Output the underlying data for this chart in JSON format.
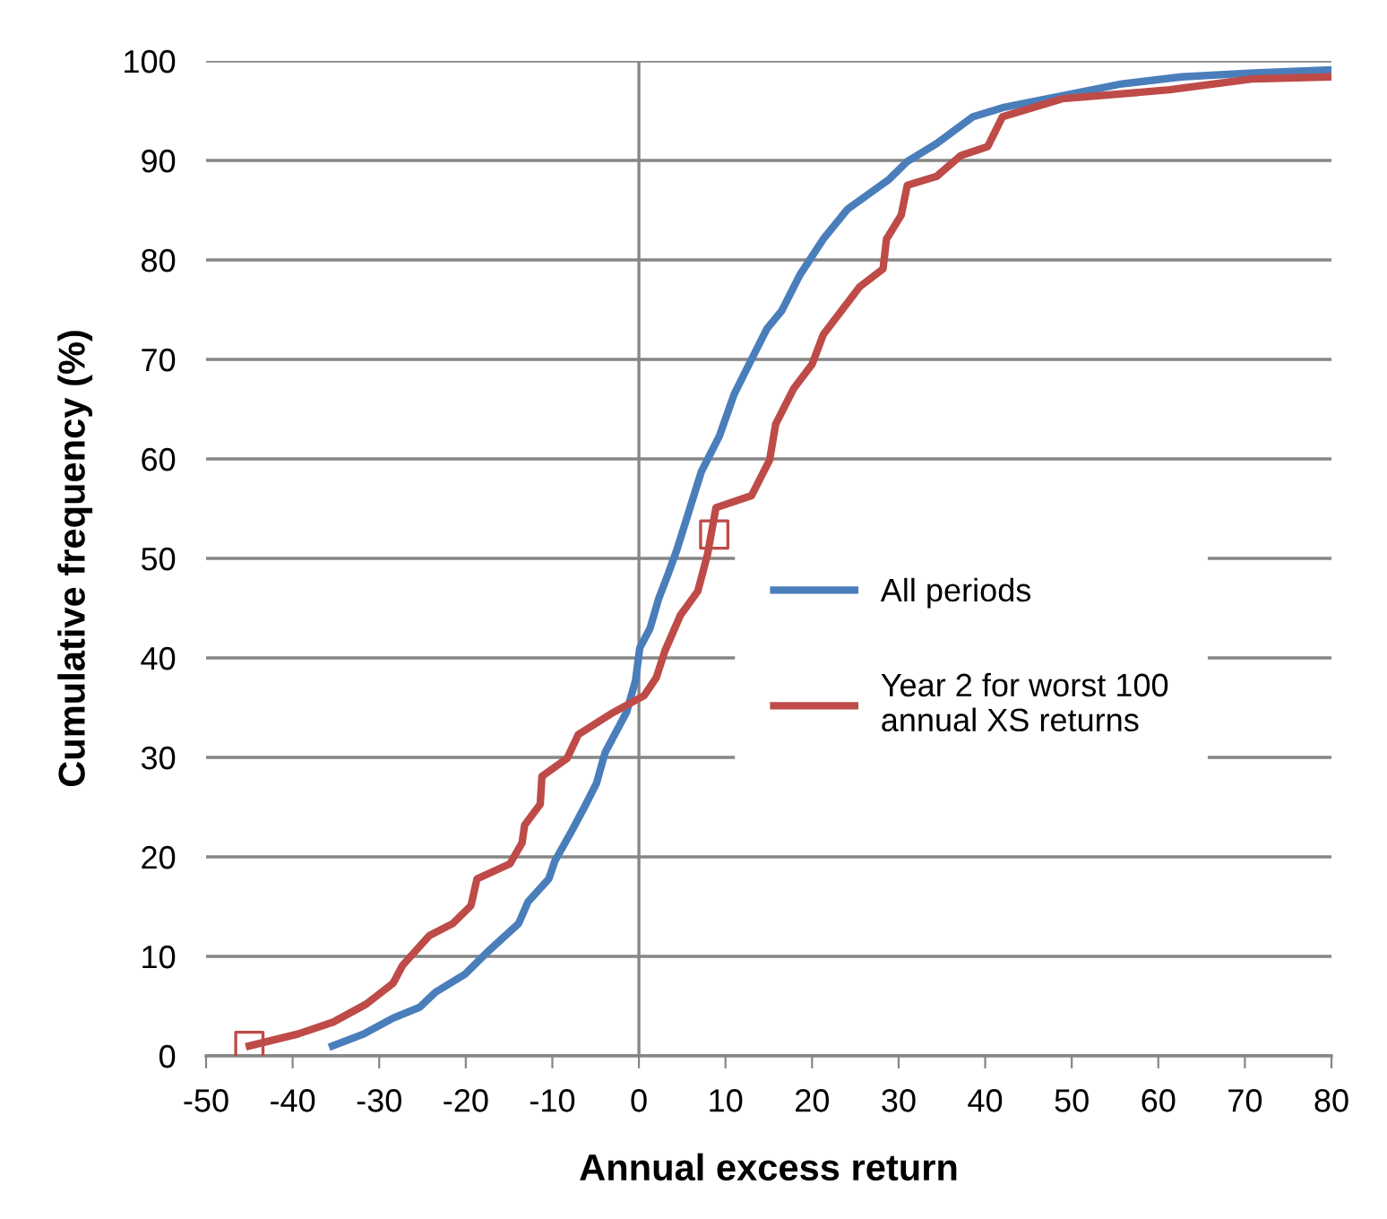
{
  "chart_data": {
    "type": "line",
    "xlabel": "Annual excess return",
    "ylabel": "Cumulative frequency (%)",
    "xlim": [
      -50,
      80
    ],
    "xticks": [
      -50,
      -40,
      -30,
      -20,
      -10,
      0,
      10,
      20,
      30,
      40,
      50,
      60,
      70,
      80
    ],
    "ylim": [
      0,
      100
    ],
    "yticks": [
      0,
      10,
      20,
      30,
      40,
      50,
      60,
      70,
      80,
      90,
      100
    ],
    "grid": "y",
    "legend": "right",
    "marker": "none",
    "line_style": "solid",
    "ref_lines": [
      {
        "axis": "x",
        "value": 0,
        "color": "#868686"
      }
    ],
    "series": [
      {
        "name": "All periods",
        "color": "#4a7ebb",
        "x": [
          -35.4,
          -31.8,
          -28.4,
          -25.3,
          -23.5,
          -20.1,
          -17.3,
          -13.9,
          -12.8,
          -10.4,
          -9.7,
          -7.7,
          -6.3,
          -4.9,
          -3.9,
          -2.8,
          -1.4,
          -0.4,
          0.1,
          1.3,
          2.3,
          3.4,
          4.4,
          7.2,
          9.3,
          11,
          13,
          14.8,
          16.5,
          18.6,
          21.3,
          24.1,
          28.9,
          31,
          34.4,
          38.6,
          42,
          48.9,
          55.8,
          62.7,
          71,
          80
        ],
        "values": [
          1,
          2.2,
          3.8,
          4.9,
          6.4,
          8.2,
          10.6,
          13.3,
          15.5,
          17.8,
          19.6,
          22.7,
          25,
          27.4,
          30.5,
          32.3,
          34.6,
          37.7,
          41,
          43,
          46,
          48.5,
          50.9,
          58.7,
          62.3,
          66.5,
          70,
          73.1,
          74.9,
          78.5,
          82.1,
          85.1,
          88.1,
          89.9,
          91.7,
          94.4,
          95.3,
          96.5,
          97.7,
          98.4,
          98.8,
          99.1
        ]
      },
      {
        "name": "Year 2 for worst 100\nannual XS returns",
        "color": "#be4b48",
        "x": [
          -45,
          -39.4,
          -35.3,
          -31.5,
          -28.4,
          -27.3,
          -24.2,
          -21.5,
          -19.4,
          -18.7,
          -14.9,
          -13.5,
          -13.2,
          -11.4,
          -11.2,
          -8.3,
          -7,
          -3.2,
          0.6,
          2,
          3,
          4.8,
          6.8,
          7.9,
          8.9,
          13,
          15.1,
          15.8,
          17.9,
          20,
          21.3,
          25.5,
          28.2,
          28.6,
          30.3,
          31,
          34.4,
          37.2,
          40.3,
          42,
          48.9,
          61.3,
          71,
          80
        ],
        "values": [
          1,
          2.2,
          3.4,
          5.2,
          7.3,
          9.1,
          12.1,
          13.3,
          15.1,
          17.8,
          19.3,
          21.4,
          23.2,
          25.3,
          28.1,
          29.9,
          32.3,
          34.4,
          36.2,
          38,
          40.7,
          44.3,
          46.7,
          50.3,
          55.1,
          56.3,
          59.9,
          63.5,
          67.1,
          69.5,
          72.5,
          77.3,
          79.1,
          82.1,
          84.5,
          87.5,
          88.4,
          90.5,
          91.4,
          94.4,
          96.2,
          97.1,
          98.2,
          98.4
        ]
      },
      {
        "type": "scatter",
        "marker": "square",
        "color": "#be4b48",
        "x": [
          -45,
          8.7
        ],
        "values": [
          1,
          52.4
        ]
      }
    ]
  }
}
